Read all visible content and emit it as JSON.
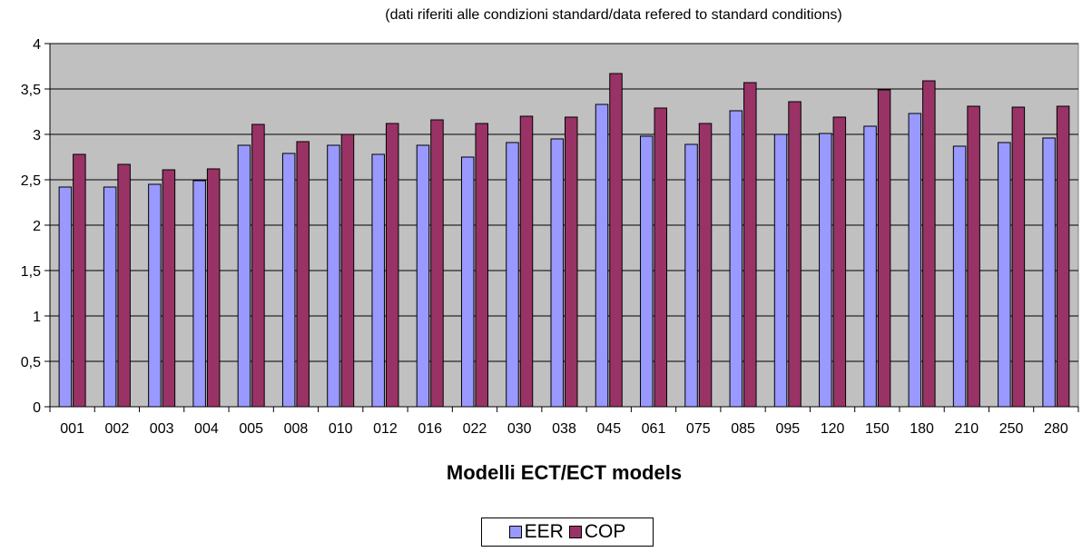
{
  "chart_data": {
    "type": "bar",
    "subtitle": "(dati riferiti alle condizioni standard/data refered to standard conditions)",
    "xlabel": "Modelli ECT/ECT models",
    "ylabel": "",
    "ylim": [
      0,
      4
    ],
    "yticks": [
      "0",
      "0,5",
      "1",
      "1,5",
      "2",
      "2,5",
      "3",
      "3,5",
      "4"
    ],
    "grid": true,
    "legend_position": "bottom",
    "categories": [
      "001",
      "002",
      "003",
      "004",
      "005",
      "008",
      "010",
      "012",
      "016",
      "022",
      "030",
      "038",
      "045",
      "061",
      "075",
      "085",
      "095",
      "120",
      "150",
      "180",
      "210",
      "250",
      "280"
    ],
    "series": [
      {
        "name": "EER",
        "color": "#9999ff",
        "values": [
          2.42,
          2.42,
          2.45,
          2.49,
          2.88,
          2.79,
          2.88,
          2.78,
          2.88,
          2.75,
          2.91,
          2.95,
          3.33,
          2.98,
          2.89,
          3.26,
          3.0,
          3.01,
          3.09,
          3.23,
          2.87,
          2.91,
          2.96
        ]
      },
      {
        "name": "COP",
        "color": "#993366",
        "values": [
          2.78,
          2.67,
          2.61,
          2.62,
          3.11,
          2.92,
          3.0,
          3.12,
          3.16,
          3.12,
          3.2,
          3.19,
          3.67,
          3.29,
          3.12,
          3.57,
          3.36,
          3.19,
          3.49,
          3.59,
          3.31,
          3.3,
          3.31
        ]
      }
    ],
    "plot_background": "#c0c0c0"
  }
}
